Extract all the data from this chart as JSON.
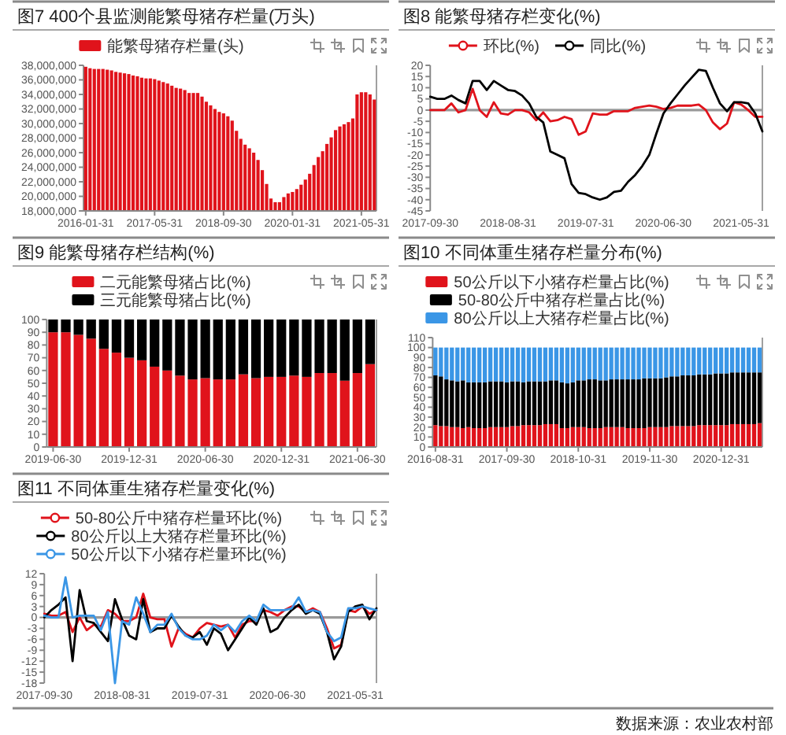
{
  "chart_data": [
    {
      "type": "bar",
      "title": "图7 400个县监测能繁母猪存栏量(万头)",
      "legend": "top",
      "categories": [
        "2016-01-31",
        null,
        null,
        null,
        null,
        null,
        null,
        null,
        null,
        null,
        null,
        null,
        null,
        null,
        null,
        null,
        "2017-05-31",
        null,
        null,
        null,
        null,
        null,
        null,
        null,
        null,
        null,
        null,
        null,
        null,
        null,
        null,
        null,
        "2018-09-30",
        null,
        null,
        null,
        null,
        null,
        null,
        null,
        null,
        null,
        null,
        null,
        null,
        null,
        null,
        null,
        "2020-01-31",
        null,
        null,
        null,
        null,
        null,
        null,
        null,
        null,
        null,
        null,
        null,
        null,
        null,
        null,
        null,
        "2021-05-31",
        null,
        null,
        null
      ],
      "series": [
        {
          "name": "能繁母猪存栏量(头)",
          "color": "#e0131b",
          "values": [
            37800000,
            37600000,
            37500000,
            37500000,
            37500000,
            37400000,
            37300000,
            37100000,
            37000000,
            36900000,
            36800000,
            36600000,
            36500000,
            36300000,
            36200000,
            36200000,
            36100000,
            35900000,
            35700000,
            35500000,
            35200000,
            34900000,
            34800000,
            34600000,
            34200000,
            34200000,
            34200000,
            33700000,
            33000000,
            32500000,
            32000000,
            31600000,
            31400000,
            31000000,
            30400000,
            29000000,
            27900000,
            27100000,
            26600000,
            26000000,
            25000000,
            23600000,
            21700000,
            19700000,
            19200000,
            19200000,
            19900000,
            20400000,
            20600000,
            21000000,
            21600000,
            22300000,
            23100000,
            24300000,
            25400000,
            26200000,
            27200000,
            28100000,
            29100000,
            29600000,
            29900000,
            30200000,
            30700000,
            34000000,
            34300000,
            34300000,
            34000000,
            33300000
          ]
        }
      ],
      "ylim": [
        18000000,
        38000000
      ],
      "yticks": [
        {
          "value": 18000000,
          "label": "18,000,000"
        },
        {
          "value": 20000000,
          "label": "20,000,000"
        },
        {
          "value": 22000000,
          "label": "22,000,000"
        },
        {
          "value": 24000000,
          "label": "24,000,000"
        },
        {
          "value": 26000000,
          "label": "26,000,000"
        },
        {
          "value": 28000000,
          "label": "28,000,000"
        },
        {
          "value": 30000000,
          "label": "30,000,000"
        },
        {
          "value": 32000000,
          "label": "32,000,000"
        },
        {
          "value": 34000000,
          "label": "34,000,000"
        },
        {
          "value": 36000000,
          "label": "36,000,000"
        },
        {
          "value": 38000000,
          "label": "38,000,000"
        }
      ]
    },
    {
      "type": "line",
      "title": "图8 能繁母猪存栏变化(%)",
      "legend": "top",
      "categories": [
        "2017-09-30",
        null,
        null,
        null,
        null,
        null,
        null,
        null,
        null,
        null,
        null,
        "2018-08-31",
        null,
        null,
        null,
        null,
        null,
        null,
        null,
        null,
        null,
        null,
        "2019-07-31",
        null,
        null,
        null,
        null,
        null,
        null,
        null,
        null,
        null,
        null,
        "2020-06-30",
        null,
        null,
        null,
        null,
        null,
        null,
        null,
        null,
        null,
        null,
        "2021-05-31",
        null,
        null,
        null
      ],
      "series": [
        {
          "name": "环比(%)",
          "color": "#e0131b",
          "values": [
            0,
            0,
            0,
            3,
            -1,
            0,
            9.5,
            0,
            -3,
            3.5,
            -1.5,
            -2,
            0,
            0,
            -1,
            -4.5,
            -1,
            -5,
            -4.5,
            -3,
            -4,
            -11,
            -9.5,
            -1.5,
            -2,
            -2,
            -0.5,
            -0.5,
            -0.5,
            1,
            1.5,
            2,
            1.5,
            0.5,
            1,
            2,
            2,
            2,
            2.5,
            0,
            -5.5,
            -8.5,
            -6,
            3.5,
            2.5,
            0,
            -3,
            -3
          ]
        },
        {
          "name": "同比(%)",
          "color": "#000000",
          "values": [
            6,
            5,
            5,
            6.5,
            4.5,
            3,
            13,
            13,
            9,
            13,
            11,
            9,
            8.5,
            6.5,
            3,
            -3,
            -5.5,
            -18.5,
            -20,
            -21.5,
            -33,
            -37,
            -37.5,
            -39,
            -40,
            -39,
            -36.5,
            -36,
            -32,
            -29,
            -25,
            -20,
            -10.5,
            -1.5,
            3,
            7,
            11,
            14.5,
            18,
            17.5,
            10,
            3,
            -0.5,
            3.5,
            3.5,
            3,
            -1.5,
            -9.5
          ]
        }
      ],
      "ylim": [
        -45,
        20
      ],
      "yticks": [
        -45,
        -40,
        -35,
        -30,
        -25,
        -20,
        -15,
        -10,
        -5,
        0,
        5,
        10,
        15,
        20
      ],
      "ref_lines": [
        {
          "axis": "y",
          "value": 0,
          "color": "#999999"
        }
      ]
    },
    {
      "type": "bar",
      "stacked": true,
      "title": "图9 能繁母猪存栏结构(%)",
      "legend": "top",
      "categories": [
        "2019-06-30",
        null,
        null,
        null,
        null,
        null,
        "2019-12-31",
        null,
        null,
        null,
        null,
        null,
        "2020-06-30",
        null,
        null,
        null,
        null,
        null,
        "2020-12-31",
        null,
        null,
        null,
        null,
        null,
        "2021-06-30",
        null
      ],
      "series": [
        {
          "name": "二元能繁母猪占比(%)",
          "color": "#e0131b",
          "values": [
            90,
            90,
            88,
            85,
            77,
            74,
            70,
            68,
            63,
            60,
            56,
            53,
            54,
            53,
            53,
            57,
            54,
            55,
            55,
            56,
            55,
            58,
            58,
            52,
            58,
            65
          ]
        },
        {
          "name": "三元能繁母猪占比(%)",
          "color": "#000000",
          "values": [
            10,
            10,
            12,
            15,
            23,
            26,
            30,
            32,
            37,
            40,
            44,
            47,
            46,
            47,
            47,
            43,
            46,
            45,
            45,
            44,
            45,
            42,
            42,
            48,
            42,
            35
          ]
        }
      ],
      "ylim": [
        0,
        100
      ],
      "yticks": [
        0,
        10,
        20,
        30,
        40,
        50,
        60,
        70,
        80,
        90,
        100
      ]
    },
    {
      "type": "bar",
      "stacked": true,
      "title": "图10 不同体重生猪存栏量分布(%)",
      "legend": "top",
      "categories": [
        "2016-08-31",
        null,
        null,
        null,
        null,
        null,
        null,
        null,
        null,
        null,
        null,
        null,
        null,
        "2017-09-30",
        null,
        null,
        null,
        null,
        null,
        null,
        null,
        null,
        null,
        null,
        null,
        null,
        "2018-10-31",
        null,
        null,
        null,
        null,
        null,
        null,
        null,
        null,
        null,
        null,
        null,
        null,
        "2019-11-30",
        null,
        null,
        null,
        null,
        null,
        null,
        null,
        null,
        null,
        null,
        null,
        null,
        "2020-12-31",
        null,
        null,
        null,
        null,
        null,
        null,
        null
      ],
      "series": [
        {
          "name": "50公斤以下小猪存栏量占比(%)",
          "color": "#e0131b",
          "values": [
            22,
            21,
            21,
            20,
            20,
            19,
            20,
            19,
            19,
            19,
            20,
            20,
            20,
            20,
            21,
            21,
            22,
            22,
            22,
            22,
            23,
            23,
            23,
            19,
            19,
            20,
            20,
            20,
            19,
            19,
            19,
            20,
            20,
            20,
            20,
            19,
            19,
            19,
            19,
            20,
            20,
            20,
            20,
            21,
            21,
            21,
            21,
            21,
            22,
            22,
            22,
            22,
            22,
            22,
            23,
            23,
            23,
            23,
            23,
            24
          ]
        },
        {
          "name": "50-80公斤中猪存栏量占比(%)",
          "color": "#000000",
          "values": [
            50,
            50,
            47,
            47,
            46,
            48,
            45,
            46,
            46,
            46,
            46,
            46,
            46,
            45,
            45,
            45,
            43,
            44,
            44,
            44,
            43,
            44,
            44,
            46,
            45,
            45,
            47,
            47,
            49,
            49,
            48,
            47,
            48,
            48,
            48,
            49,
            49,
            49,
            50,
            49,
            49,
            49,
            50,
            50,
            50,
            51,
            51,
            51,
            51,
            51,
            51,
            52,
            52,
            52,
            52,
            52,
            52,
            52,
            52,
            51
          ]
        },
        {
          "name": "80公斤以上大猪存栏量占比(%)",
          "color": "#3a96e6",
          "values": [
            28,
            29,
            32,
            33,
            34,
            33,
            35,
            35,
            35,
            35,
            34,
            34,
            34,
            35,
            34,
            34,
            35,
            34,
            34,
            34,
            34,
            33,
            33,
            35,
            36,
            35,
            33,
            33,
            32,
            32,
            33,
            33,
            32,
            32,
            32,
            32,
            32,
            32,
            31,
            31,
            31,
            31,
            30,
            29,
            29,
            28,
            28,
            28,
            27,
            27,
            27,
            26,
            26,
            26,
            25,
            25,
            25,
            25,
            25,
            25
          ]
        }
      ],
      "ylim": [
        0,
        110
      ],
      "yticks": [
        0,
        10,
        20,
        30,
        40,
        50,
        60,
        70,
        80,
        90,
        100,
        110
      ]
    },
    {
      "type": "line",
      "title": "图11 不同体重生猪存栏量变化(%)",
      "legend": "top",
      "categories": [
        "2017-09-30",
        null,
        null,
        null,
        null,
        null,
        null,
        null,
        null,
        null,
        null,
        "2018-08-31",
        null,
        null,
        null,
        null,
        null,
        null,
        null,
        null,
        null,
        null,
        "2019-07-31",
        null,
        null,
        null,
        null,
        null,
        null,
        null,
        null,
        null,
        null,
        "2020-06-30",
        null,
        null,
        null,
        null,
        null,
        null,
        null,
        null,
        null,
        null,
        "2021-05-31",
        null,
        null,
        null
      ],
      "series": [
        {
          "name": "50-80公斤中猪存栏量环比(%)",
          "color": "#e0131b",
          "values": [
            1,
            0.5,
            0.5,
            1.5,
            -4,
            0,
            -3.5,
            -2,
            -2.5,
            2,
            1,
            -1,
            -1,
            0,
            6.5,
            0,
            -0.5,
            -0.5,
            -8,
            -3,
            -4.5,
            -5.5,
            -3,
            -1.5,
            -2,
            -2.5,
            -2,
            -5.5,
            -2,
            -1,
            -1,
            2,
            1.5,
            0.5,
            2,
            3,
            3,
            1.5,
            2.5,
            1.5,
            -3,
            -8.5,
            -7.5,
            2,
            1.5,
            3,
            1,
            2
          ]
        },
        {
          "name": "80公斤以上大猪存栏量环比(%)",
          "color": "#000000",
          "values": [
            0,
            2,
            3.5,
            5.5,
            -12,
            7.5,
            -1,
            -1.5,
            -4,
            -6.5,
            5,
            -0.5,
            -5,
            -6,
            5,
            -4,
            -3,
            -3,
            0.5,
            -2.5,
            -5,
            -5.5,
            -4,
            -7.5,
            -3,
            -4.5,
            -9,
            -6,
            -3,
            0,
            -2,
            2.5,
            -4,
            -3,
            0,
            2,
            3.5,
            1,
            2,
            1,
            -4,
            -11.5,
            -8,
            1.5,
            3,
            3.5,
            -0.5,
            2.5
          ]
        },
        {
          "name": "50公斤以下小猪存栏量环比(%)",
          "color": "#3a96e6",
          "values": [
            0.5,
            0,
            0,
            11,
            0,
            0.5,
            0.5,
            0.5,
            -3.5,
            1.5,
            -18,
            -1,
            -2,
            5.5,
            1,
            -4,
            -2,
            -2,
            1,
            -3,
            -5,
            -6,
            -6,
            -5,
            -2,
            -3.5,
            -2,
            -4,
            -1,
            0.5,
            -1,
            3.5,
            2,
            2,
            2,
            2.5,
            5.5,
            1.5,
            2,
            1.5,
            -4,
            -6.5,
            -5.5,
            2.5,
            2.5,
            3,
            2.5,
            2
          ]
        }
      ],
      "ylim": [
        -18,
        12
      ],
      "yticks": [
        -18,
        -15,
        -12,
        -9,
        -6,
        -3,
        0,
        3,
        6,
        9,
        12
      ],
      "ref_lines": [
        {
          "axis": "y",
          "value": 0,
          "color": "#999999"
        }
      ],
      "annotations": [
        "数据来源：农业农村部"
      ]
    }
  ]
}
